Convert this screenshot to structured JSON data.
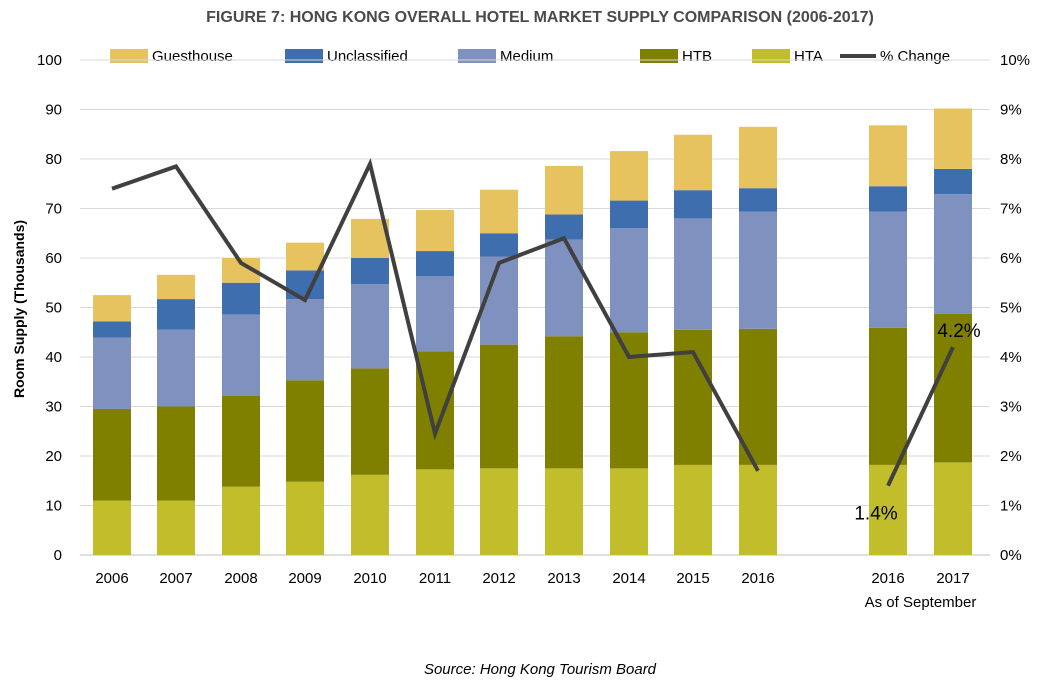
{
  "chart_data": {
    "type": "bar",
    "stacked": true,
    "title": "FIGURE 7: HONG KONG OVERALL HOTEL MARKET SUPPLY COMPARISON (2006-2017)",
    "ylabel": "Room Supply (Thousands)",
    "ylim": [
      0,
      100
    ],
    "yticks": [
      0,
      10,
      20,
      30,
      40,
      50,
      60,
      70,
      80,
      90,
      100
    ],
    "y2lim": [
      0,
      10
    ],
    "y2ticks": [
      "0%",
      "1%",
      "2%",
      "3%",
      "4%",
      "5%",
      "6%",
      "7%",
      "8%",
      "9%",
      "10%"
    ],
    "grid": true,
    "legend_position": "top",
    "categories": [
      "2006",
      "2007",
      "2008",
      "2009",
      "2010",
      "2011",
      "2012",
      "2013",
      "2014",
      "2015",
      "2016",
      "2016",
      "2017"
    ],
    "category_sublabel": "As of September",
    "legend": [
      "Guesthouse",
      "Unclassified",
      "Medium",
      "HTB",
      "HTA",
      "% Change"
    ],
    "series": [
      {
        "name": "HTA",
        "color": "#c2bd2b",
        "values": [
          11.0,
          11.0,
          13.8,
          14.8,
          16.2,
          17.3,
          17.5,
          17.5,
          17.5,
          18.2,
          18.2,
          18.2,
          18.7
        ]
      },
      {
        "name": "HTB",
        "color": "#7f7f00",
        "values": [
          18.5,
          19.0,
          18.4,
          20.5,
          21.5,
          23.8,
          25.0,
          26.7,
          27.5,
          27.3,
          27.5,
          27.7,
          30.0
        ]
      },
      {
        "name": "Medium",
        "color": "#7f91be",
        "values": [
          14.4,
          15.5,
          16.4,
          16.4,
          17.0,
          15.2,
          17.8,
          19.5,
          21.0,
          22.5,
          23.7,
          23.5,
          24.2
        ]
      },
      {
        "name": "Unclassified",
        "color": "#3f6eaf",
        "values": [
          3.3,
          6.2,
          6.4,
          5.8,
          5.3,
          5.1,
          4.7,
          5.1,
          5.6,
          5.7,
          4.7,
          5.1,
          5.1
        ]
      },
      {
        "name": "Guesthouse",
        "color": "#e6c35f",
        "values": [
          5.3,
          4.9,
          5.0,
          5.6,
          7.9,
          8.3,
          8.8,
          9.8,
          10.0,
          11.2,
          12.4,
          12.3,
          12.2
        ]
      }
    ],
    "line_series": {
      "name": "% Change",
      "color": "#404040",
      "axis": "secondary",
      "segments": [
        {
          "categories": [
            0,
            1,
            2,
            3,
            4,
            5,
            6,
            7,
            8,
            9,
            10
          ],
          "values": [
            7.4,
            7.85,
            5.9,
            5.15,
            7.9,
            2.45,
            5.9,
            6.4,
            4.0,
            4.1,
            1.7
          ]
        },
        {
          "categories": [
            11,
            12
          ],
          "values": [
            1.4,
            4.2
          ]
        }
      ]
    },
    "annotations": [
      "1.4%",
      "4.2%"
    ],
    "source": "Source: Hong Kong Tourism Board"
  }
}
